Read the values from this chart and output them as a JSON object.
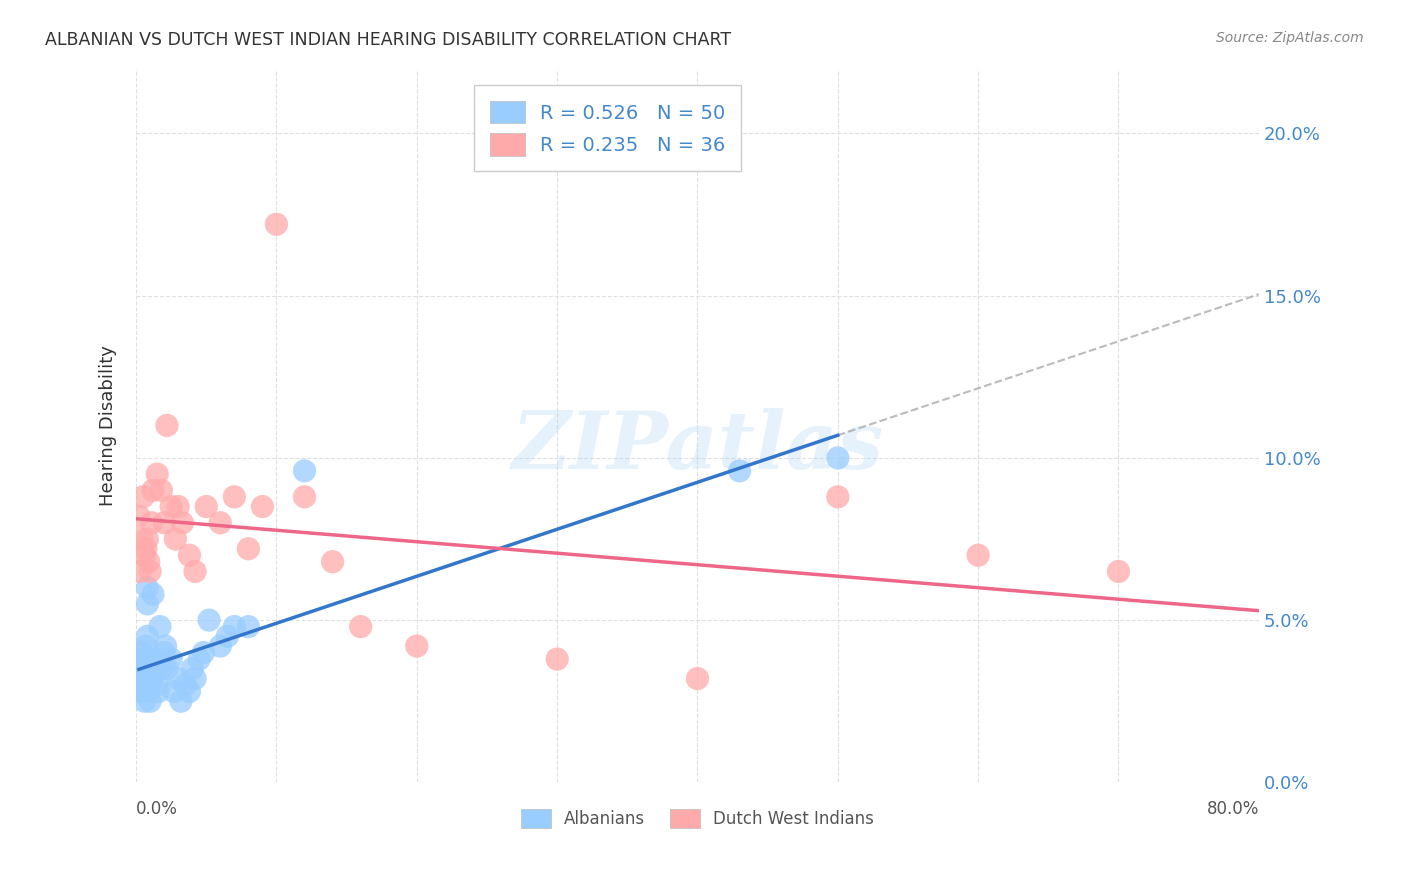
{
  "title": "ALBANIAN VS DUTCH WEST INDIAN HEARING DISABILITY CORRELATION CHART",
  "source": "Source: ZipAtlas.com",
  "ylabel": "Hearing Disability",
  "legend_label1": "Albanians",
  "legend_label2": "Dutch West Indians",
  "R1": 0.526,
  "N1": 50,
  "R2": 0.235,
  "N2": 36,
  "color_blue_scatter": "#99ccff",
  "color_blue_line": "#3377cc",
  "color_blue_dash": "#aaaaaa",
  "color_pink_scatter": "#ffaaaa",
  "color_pink_line": "#ee6688",
  "color_axis_blue": "#4488cc",
  "color_title": "#333333",
  "color_source": "#888888",
  "color_grid": "#dddddd",
  "xlim": [
    0.0,
    0.8
  ],
  "ylim": [
    0.0,
    0.22
  ],
  "yticks": [
    0.0,
    0.05,
    0.1,
    0.15,
    0.2
  ],
  "ytick_labels": [
    "0.0%",
    "5.0%",
    "10.0%",
    "15.0%",
    "20.0%"
  ],
  "watermark_text": "ZIPatlas",
  "albanian_x": [
    0.002,
    0.003,
    0.003,
    0.004,
    0.004,
    0.005,
    0.005,
    0.006,
    0.006,
    0.006,
    0.007,
    0.007,
    0.007,
    0.008,
    0.008,
    0.008,
    0.009,
    0.009,
    0.01,
    0.01,
    0.011,
    0.011,
    0.012,
    0.013,
    0.014,
    0.015,
    0.016,
    0.017,
    0.018,
    0.02,
    0.021,
    0.022,
    0.025,
    0.027,
    0.03,
    0.032,
    0.035,
    0.038,
    0.04,
    0.042,
    0.045,
    0.048,
    0.052,
    0.06,
    0.065,
    0.07,
    0.08,
    0.12,
    0.43,
    0.5
  ],
  "albanian_y": [
    0.035,
    0.028,
    0.032,
    0.04,
    0.036,
    0.03,
    0.038,
    0.028,
    0.025,
    0.033,
    0.042,
    0.035,
    0.038,
    0.06,
    0.055,
    0.045,
    0.03,
    0.028,
    0.025,
    0.032,
    0.038,
    0.032,
    0.058,
    0.035,
    0.038,
    0.03,
    0.028,
    0.048,
    0.035,
    0.04,
    0.042,
    0.035,
    0.038,
    0.028,
    0.032,
    0.025,
    0.03,
    0.028,
    0.035,
    0.032,
    0.038,
    0.04,
    0.05,
    0.042,
    0.045,
    0.048,
    0.048,
    0.096,
    0.096,
    0.1
  ],
  "dutch_x": [
    0.002,
    0.003,
    0.004,
    0.005,
    0.006,
    0.007,
    0.008,
    0.009,
    0.01,
    0.011,
    0.012,
    0.015,
    0.018,
    0.02,
    0.022,
    0.025,
    0.028,
    0.03,
    0.033,
    0.038,
    0.042,
    0.05,
    0.06,
    0.07,
    0.08,
    0.09,
    0.1,
    0.12,
    0.14,
    0.16,
    0.2,
    0.3,
    0.4,
    0.5,
    0.6,
    0.7
  ],
  "dutch_y": [
    0.082,
    0.065,
    0.075,
    0.088,
    0.07,
    0.072,
    0.075,
    0.068,
    0.065,
    0.08,
    0.09,
    0.095,
    0.09,
    0.08,
    0.11,
    0.085,
    0.075,
    0.085,
    0.08,
    0.07,
    0.065,
    0.085,
    0.08,
    0.088,
    0.072,
    0.085,
    0.172,
    0.088,
    0.068,
    0.048,
    0.042,
    0.038,
    0.032,
    0.088,
    0.07,
    0.065
  ]
}
